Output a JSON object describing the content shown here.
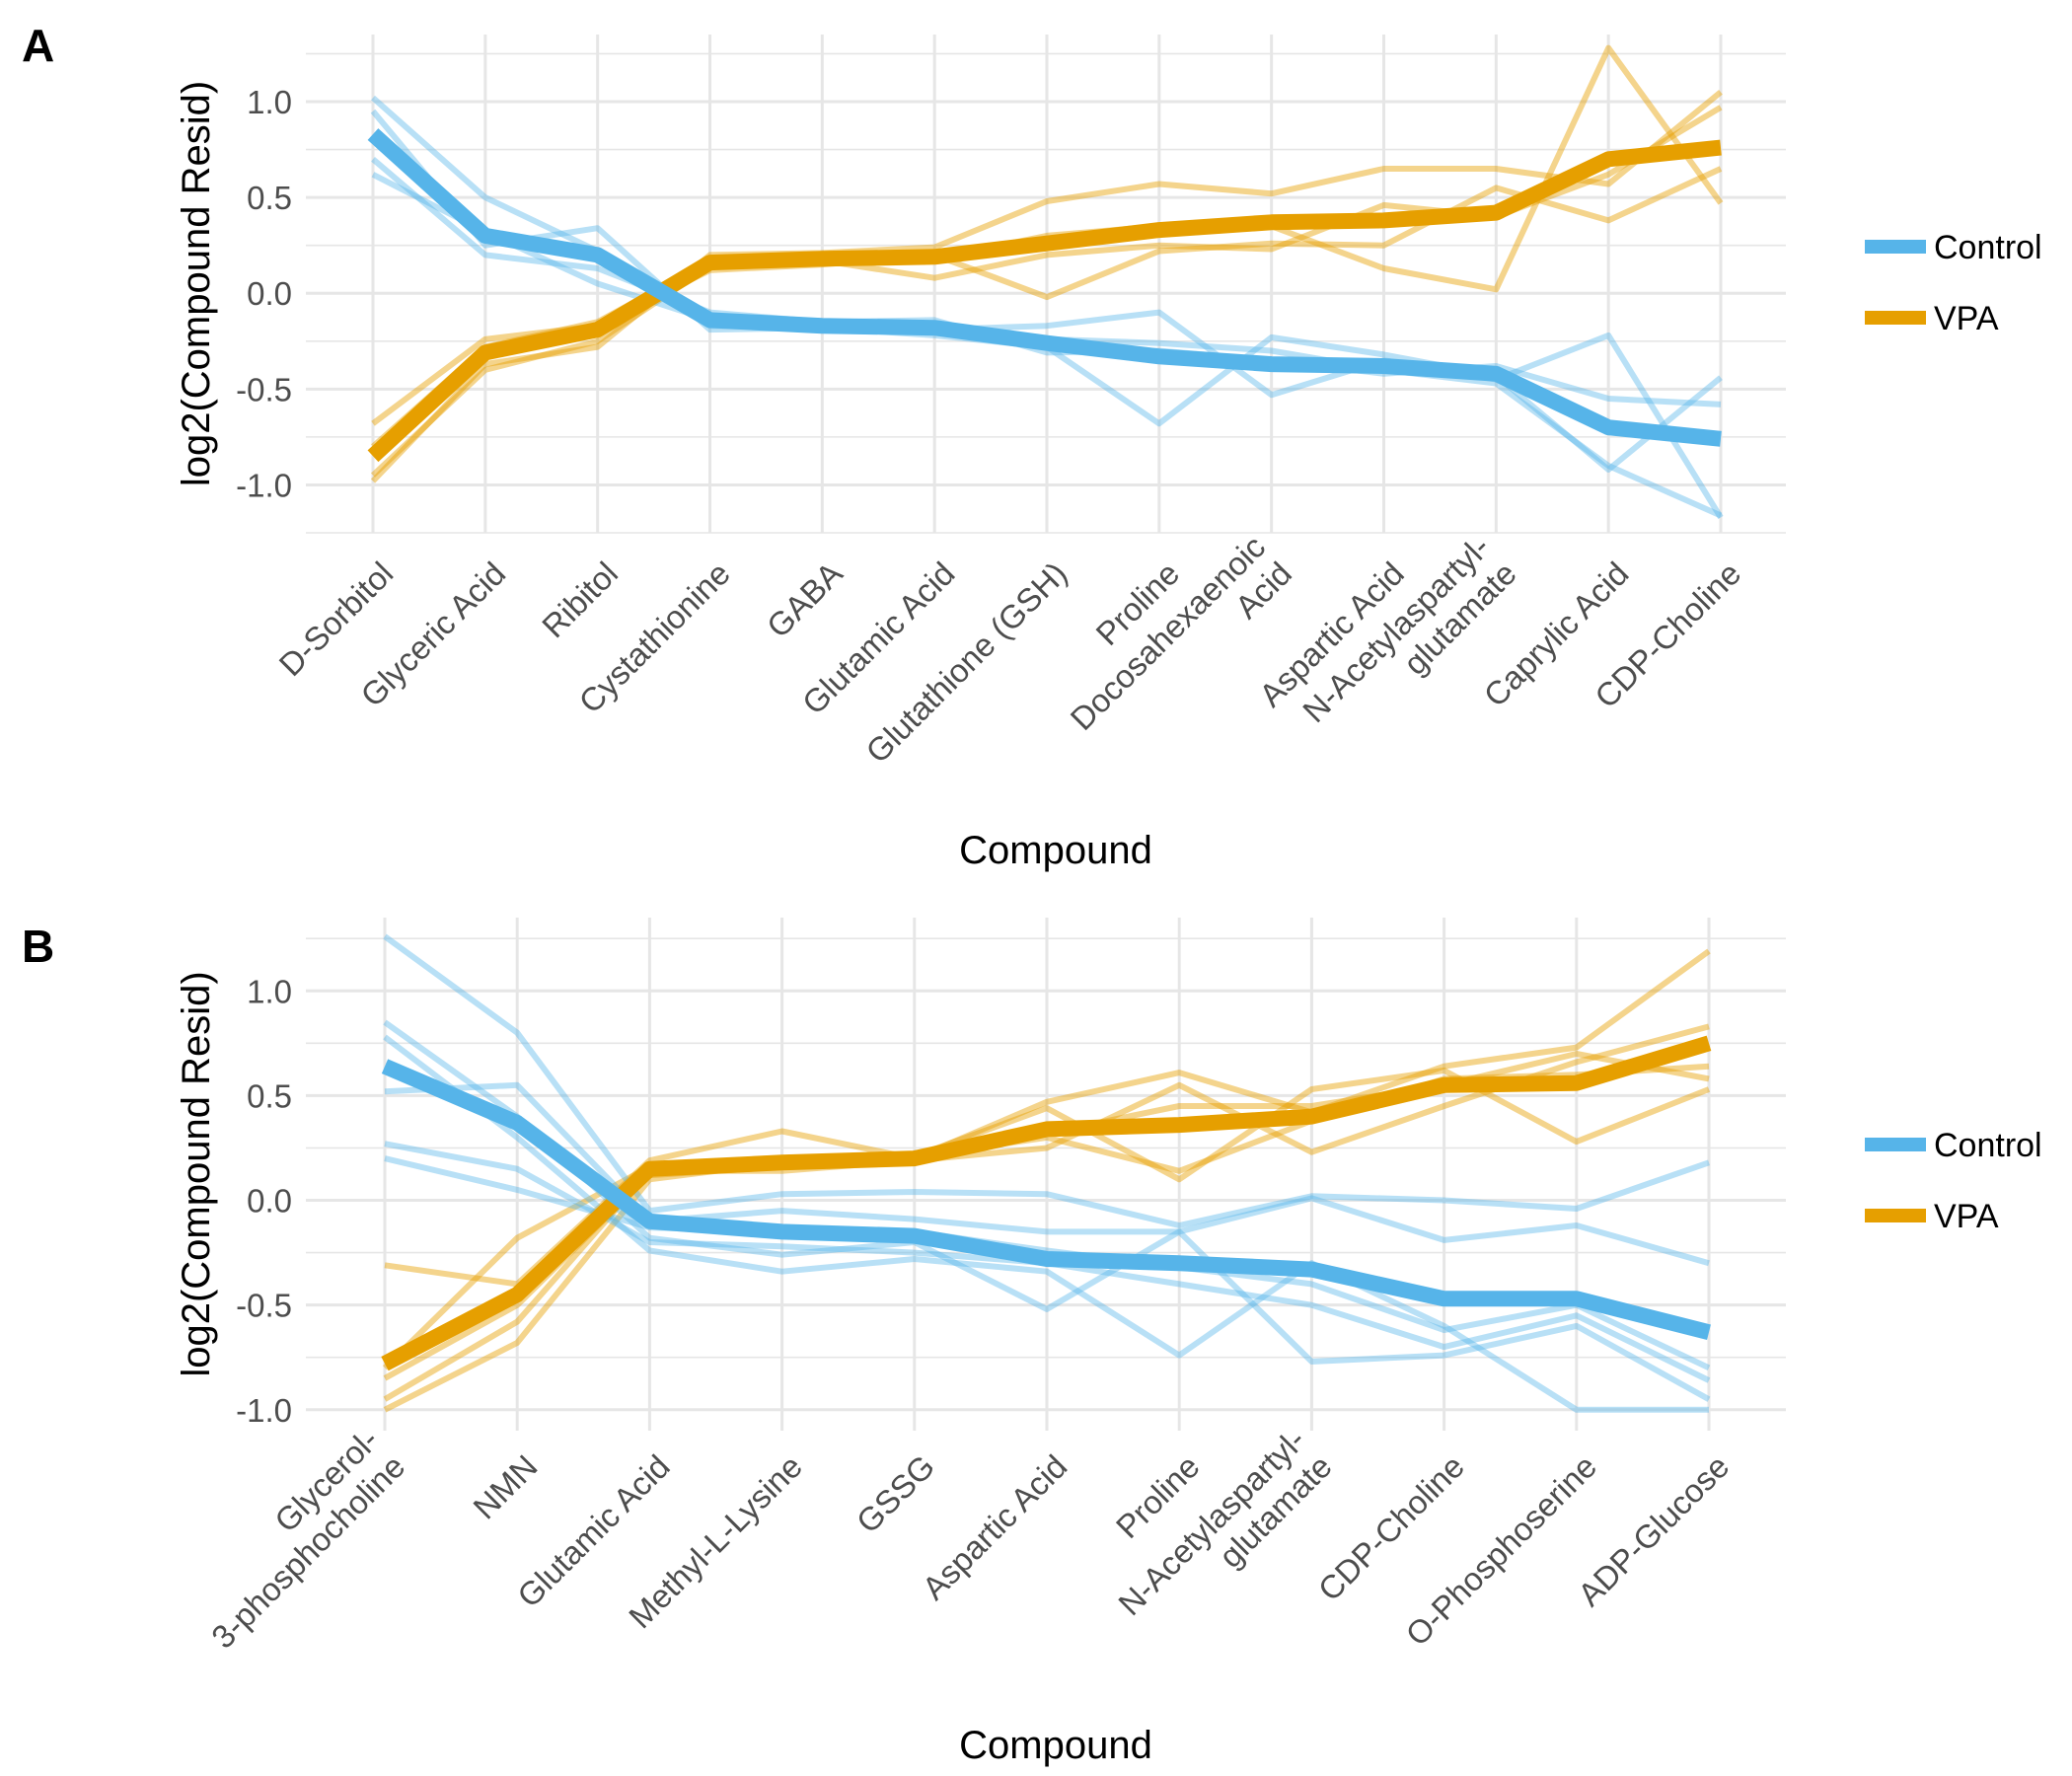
{
  "colors": {
    "control": "#56B4E9",
    "vpa": "#E69F00",
    "grid": "#E6E6E6"
  },
  "legend": {
    "control_label": "Control",
    "vpa_label": "VPA"
  },
  "chart_data": [
    {
      "panel_label": "A",
      "type": "line",
      "xlabel": "Compound",
      "ylabel": "log2(Compound Resid)",
      "ylim": [
        -1.25,
        1.35
      ],
      "yticks": [
        -1.0,
        -0.5,
        0.0,
        0.5,
        1.0
      ],
      "ytick_labels": [
        "-1.0",
        "-0.5",
        "0.0",
        "0.5",
        "1.0"
      ],
      "grid": true,
      "legend_position": "right",
      "categories": [
        "D-Sorbitol",
        "Glyceric Acid",
        "Ribitol",
        "Cystathionine",
        "GABA",
        "Glutamic Acid",
        "Glutathione (GSH)",
        "Proline",
        "Docosahexaenoic\nAcid",
        "Aspartic Acid",
        "N-Acetylaspartyl-\nglutamate",
        "Caprylic Acid",
        "CDP-Choline"
      ],
      "control_mean": [
        0.83,
        0.3,
        0.2,
        -0.14,
        -0.17,
        -0.18,
        -0.26,
        -0.33,
        -0.37,
        -0.38,
        -0.42,
        -0.7,
        -0.76
      ],
      "vpa_mean": [
        -0.85,
        -0.31,
        -0.19,
        0.16,
        0.18,
        0.19,
        0.26,
        0.33,
        0.37,
        0.38,
        0.42,
        0.7,
        0.76
      ],
      "control_samples": [
        [
          1.02,
          0.5,
          0.22,
          -0.17,
          -0.18,
          -0.22,
          -0.28,
          -0.68,
          -0.23,
          -0.32,
          -0.43,
          -0.92,
          -0.44
        ],
        [
          0.95,
          0.25,
          0.34,
          -0.19,
          -0.18,
          -0.19,
          -0.17,
          -0.1,
          -0.53,
          -0.35,
          -0.45,
          -0.22,
          -1.17
        ],
        [
          0.7,
          0.2,
          0.13,
          -0.1,
          -0.15,
          -0.14,
          -0.31,
          -0.3,
          -0.35,
          -0.42,
          -0.38,
          -0.55,
          -0.58
        ],
        [
          0.62,
          0.32,
          0.05,
          -0.14,
          -0.17,
          -0.19,
          -0.24,
          -0.26,
          -0.3,
          -0.4,
          -0.47,
          -0.9,
          -1.16
        ]
      ],
      "vpa_samples": [
        [
          -0.98,
          -0.37,
          -0.28,
          0.2,
          0.21,
          0.24,
          0.48,
          0.57,
          0.52,
          0.65,
          0.65,
          0.57,
          1.05
        ],
        [
          -0.68,
          -0.24,
          -0.17,
          0.12,
          0.15,
          0.2,
          -0.02,
          0.22,
          0.26,
          0.25,
          0.55,
          0.38,
          0.65
        ],
        [
          -0.95,
          -0.4,
          -0.25,
          0.14,
          0.19,
          0.18,
          0.3,
          0.35,
          0.35,
          0.13,
          0.02,
          1.28,
          0.47
        ],
        [
          -0.8,
          -0.28,
          -0.15,
          0.17,
          0.17,
          0.08,
          0.2,
          0.25,
          0.23,
          0.46,
          0.4,
          0.62,
          0.97
        ]
      ]
    },
    {
      "panel_label": "B",
      "type": "line",
      "xlabel": "Compound",
      "ylabel": "log2(Compound Resid)",
      "ylim": [
        -1.1,
        1.35
      ],
      "yticks": [
        -1.0,
        -0.5,
        0.0,
        0.5,
        1.0
      ],
      "ytick_labels": [
        "-1.0",
        "-0.5",
        "0.0",
        "0.5",
        "1.0"
      ],
      "grid": true,
      "legend_position": "right",
      "categories": [
        "Glycerol-\n3-phosphocholine",
        "NMN",
        "Glutamic Acid",
        "Methyl-L-Lysine",
        "GSSG",
        "Aspartic Acid",
        "Proline",
        "N-Acetylaspartyl-\nglutamate",
        "CDP-Choline",
        "O-Phosphoserine",
        "ADP-Glucose"
      ],
      "control_mean": [
        0.64,
        0.37,
        -0.1,
        -0.15,
        -0.17,
        -0.28,
        -0.3,
        -0.33,
        -0.47,
        -0.47,
        -0.63
      ],
      "vpa_mean": [
        -0.78,
        -0.45,
        0.15,
        0.18,
        0.2,
        0.34,
        0.36,
        0.4,
        0.55,
        0.56,
        0.75
      ],
      "control_samples": [
        [
          1.26,
          0.8,
          -0.05,
          0.03,
          0.04,
          0.03,
          -0.12,
          0.02,
          0.0,
          -0.04,
          0.18
        ],
        [
          0.85,
          0.4,
          -0.18,
          -0.26,
          -0.2,
          -0.52,
          -0.15,
          -0.77,
          -0.74,
          -0.6,
          -0.95
        ],
        [
          0.78,
          0.3,
          -0.24,
          -0.34,
          -0.28,
          -0.34,
          -0.74,
          -0.3,
          -0.6,
          -1.0,
          -1.0
        ],
        [
          0.52,
          0.55,
          -0.1,
          -0.05,
          -0.09,
          -0.15,
          -0.15,
          0.01,
          -0.19,
          -0.12,
          -0.3
        ],
        [
          0.27,
          0.15,
          -0.2,
          -0.22,
          -0.25,
          -0.3,
          -0.4,
          -0.5,
          -0.7,
          -0.55,
          -0.86
        ],
        [
          0.2,
          0.05,
          -0.13,
          -0.15,
          -0.15,
          -0.24,
          -0.32,
          -0.4,
          -0.62,
          -0.5,
          -0.8
        ]
      ],
      "vpa_samples": [
        [
          -0.31,
          -0.4,
          0.19,
          0.33,
          0.2,
          0.47,
          0.61,
          0.42,
          0.64,
          0.73,
          1.19
        ],
        [
          -1.0,
          -0.68,
          0.1,
          0.18,
          0.21,
          0.44,
          0.1,
          0.53,
          0.62,
          0.28,
          0.53
        ],
        [
          -0.95,
          -0.58,
          0.14,
          0.14,
          0.19,
          0.25,
          0.55,
          0.23,
          0.45,
          0.66,
          0.83
        ],
        [
          -0.8,
          -0.18,
          0.16,
          0.2,
          0.21,
          0.3,
          0.14,
          0.38,
          0.58,
          0.6,
          0.64
        ],
        [
          -0.85,
          -0.5,
          0.12,
          0.16,
          0.2,
          0.32,
          0.45,
          0.45,
          0.55,
          0.7,
          0.58
        ]
      ]
    }
  ]
}
